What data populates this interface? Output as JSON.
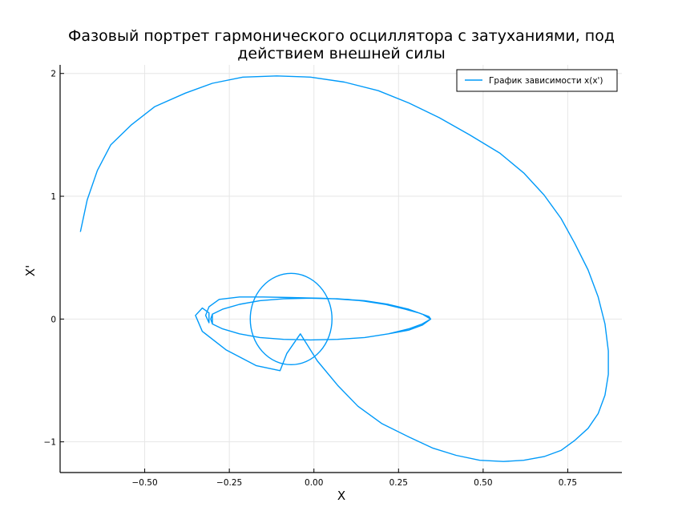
{
  "chart_data": {
    "type": "line",
    "title_line1": "Фазовый портрет гармонического осциллятора с затуханиями, под",
    "title_line2": "действием внешней силы",
    "xlabel": "X",
    "ylabel": "X'",
    "xlim": [
      -0.75,
      0.91
    ],
    "ylim": [
      -1.25,
      2.07
    ],
    "xticks": [
      -0.5,
      -0.25,
      0.0,
      0.25,
      0.5,
      0.75
    ],
    "xtick_labels": [
      "−0.50",
      "−0.25",
      "0.00",
      "0.25",
      "0.50",
      "0.75"
    ],
    "yticks": [
      -1,
      0,
      1,
      2
    ],
    "ytick_labels": [
      "−1",
      "0",
      "1",
      "2"
    ],
    "grid": true,
    "legend_position": "top-right",
    "color": "#009af9",
    "series": [
      {
        "name": "График зависимости x(x')",
        "x": [
          -0.69,
          -0.67,
          -0.64,
          -0.6,
          -0.54,
          -0.47,
          -0.38,
          -0.3,
          -0.21,
          -0.11,
          -0.01,
          0.09,
          0.19,
          0.28,
          0.37,
          0.46,
          0.55,
          0.62,
          0.68,
          0.73,
          0.77,
          0.81,
          0.84,
          0.86,
          0.87,
          0.87,
          0.86,
          0.84,
          0.81,
          0.77,
          0.73,
          0.68,
          0.62,
          0.56,
          0.49,
          0.42,
          0.35,
          0.28,
          0.2,
          0.13,
          0.07,
          0.01,
          -0.04,
          -0.08,
          -0.1,
          -0.17,
          -0.26,
          -0.33,
          -0.35,
          -0.33,
          -0.31,
          -0.31,
          -0.32,
          -0.31,
          -0.28,
          -0.22,
          -0.15,
          -0.07,
          0.02,
          0.1,
          0.17,
          0.23,
          0.28,
          0.32,
          0.345,
          0.32,
          0.28,
          0.22,
          0.15,
          0.07,
          -0.01,
          -0.09,
          -0.16,
          -0.22,
          -0.27,
          -0.3,
          -0.305,
          -0.3,
          -0.27,
          -0.22,
          -0.16,
          -0.09,
          -0.01,
          0.07,
          0.15,
          0.22,
          0.28,
          0.32,
          0.345,
          0.32,
          0.28,
          0.22,
          0.15,
          0.07,
          -0.01,
          -0.09,
          -0.16,
          -0.22,
          -0.27,
          -0.3,
          -0.3,
          -0.27,
          -0.22,
          -0.16,
          -0.09,
          -0.02,
          0.06,
          0.14,
          0.21,
          0.27,
          0.31,
          0.34,
          0.345
        ],
        "y": [
          0.71,
          0.97,
          1.21,
          1.42,
          1.58,
          1.73,
          1.84,
          1.92,
          1.97,
          1.98,
          1.97,
          1.93,
          1.86,
          1.76,
          1.64,
          1.5,
          1.35,
          1.19,
          1.01,
          0.82,
          0.62,
          0.4,
          0.18,
          -0.04,
          -0.26,
          -0.45,
          -0.62,
          -0.77,
          -0.89,
          -0.99,
          -1.07,
          -1.12,
          -1.15,
          -1.16,
          -1.15,
          -1.11,
          -1.05,
          -0.96,
          -0.85,
          -0.71,
          -0.54,
          -0.34,
          -0.12,
          -0.28,
          -0.42,
          -0.38,
          -0.25,
          -0.1,
          0.03,
          0.09,
          0.05,
          -0.03,
          0.03,
          0.1,
          0.16,
          0.18,
          0.18,
          0.175,
          0.17,
          0.16,
          0.14,
          0.11,
          0.08,
          0.04,
          0.0,
          -0.05,
          -0.09,
          -0.12,
          -0.15,
          -0.165,
          -0.17,
          -0.165,
          -0.15,
          -0.12,
          -0.08,
          -0.04,
          0.0,
          0.04,
          0.08,
          0.12,
          0.15,
          0.165,
          0.17,
          0.165,
          0.15,
          0.12,
          0.08,
          0.04,
          0.0,
          -0.04,
          -0.08,
          -0.12,
          -0.15,
          -0.165,
          -0.17,
          -0.165,
          -0.15,
          -0.12,
          -0.08,
          -0.04,
          0.04,
          0.08,
          0.12,
          0.15,
          0.165,
          0.17,
          0.165,
          0.15,
          0.12,
          0.08,
          0.05,
          0.02,
          0.0
        ]
      }
    ],
    "inner_circle": {
      "cx": -0.02,
      "cy": 0.0,
      "note": "closed loop"
    }
  }
}
